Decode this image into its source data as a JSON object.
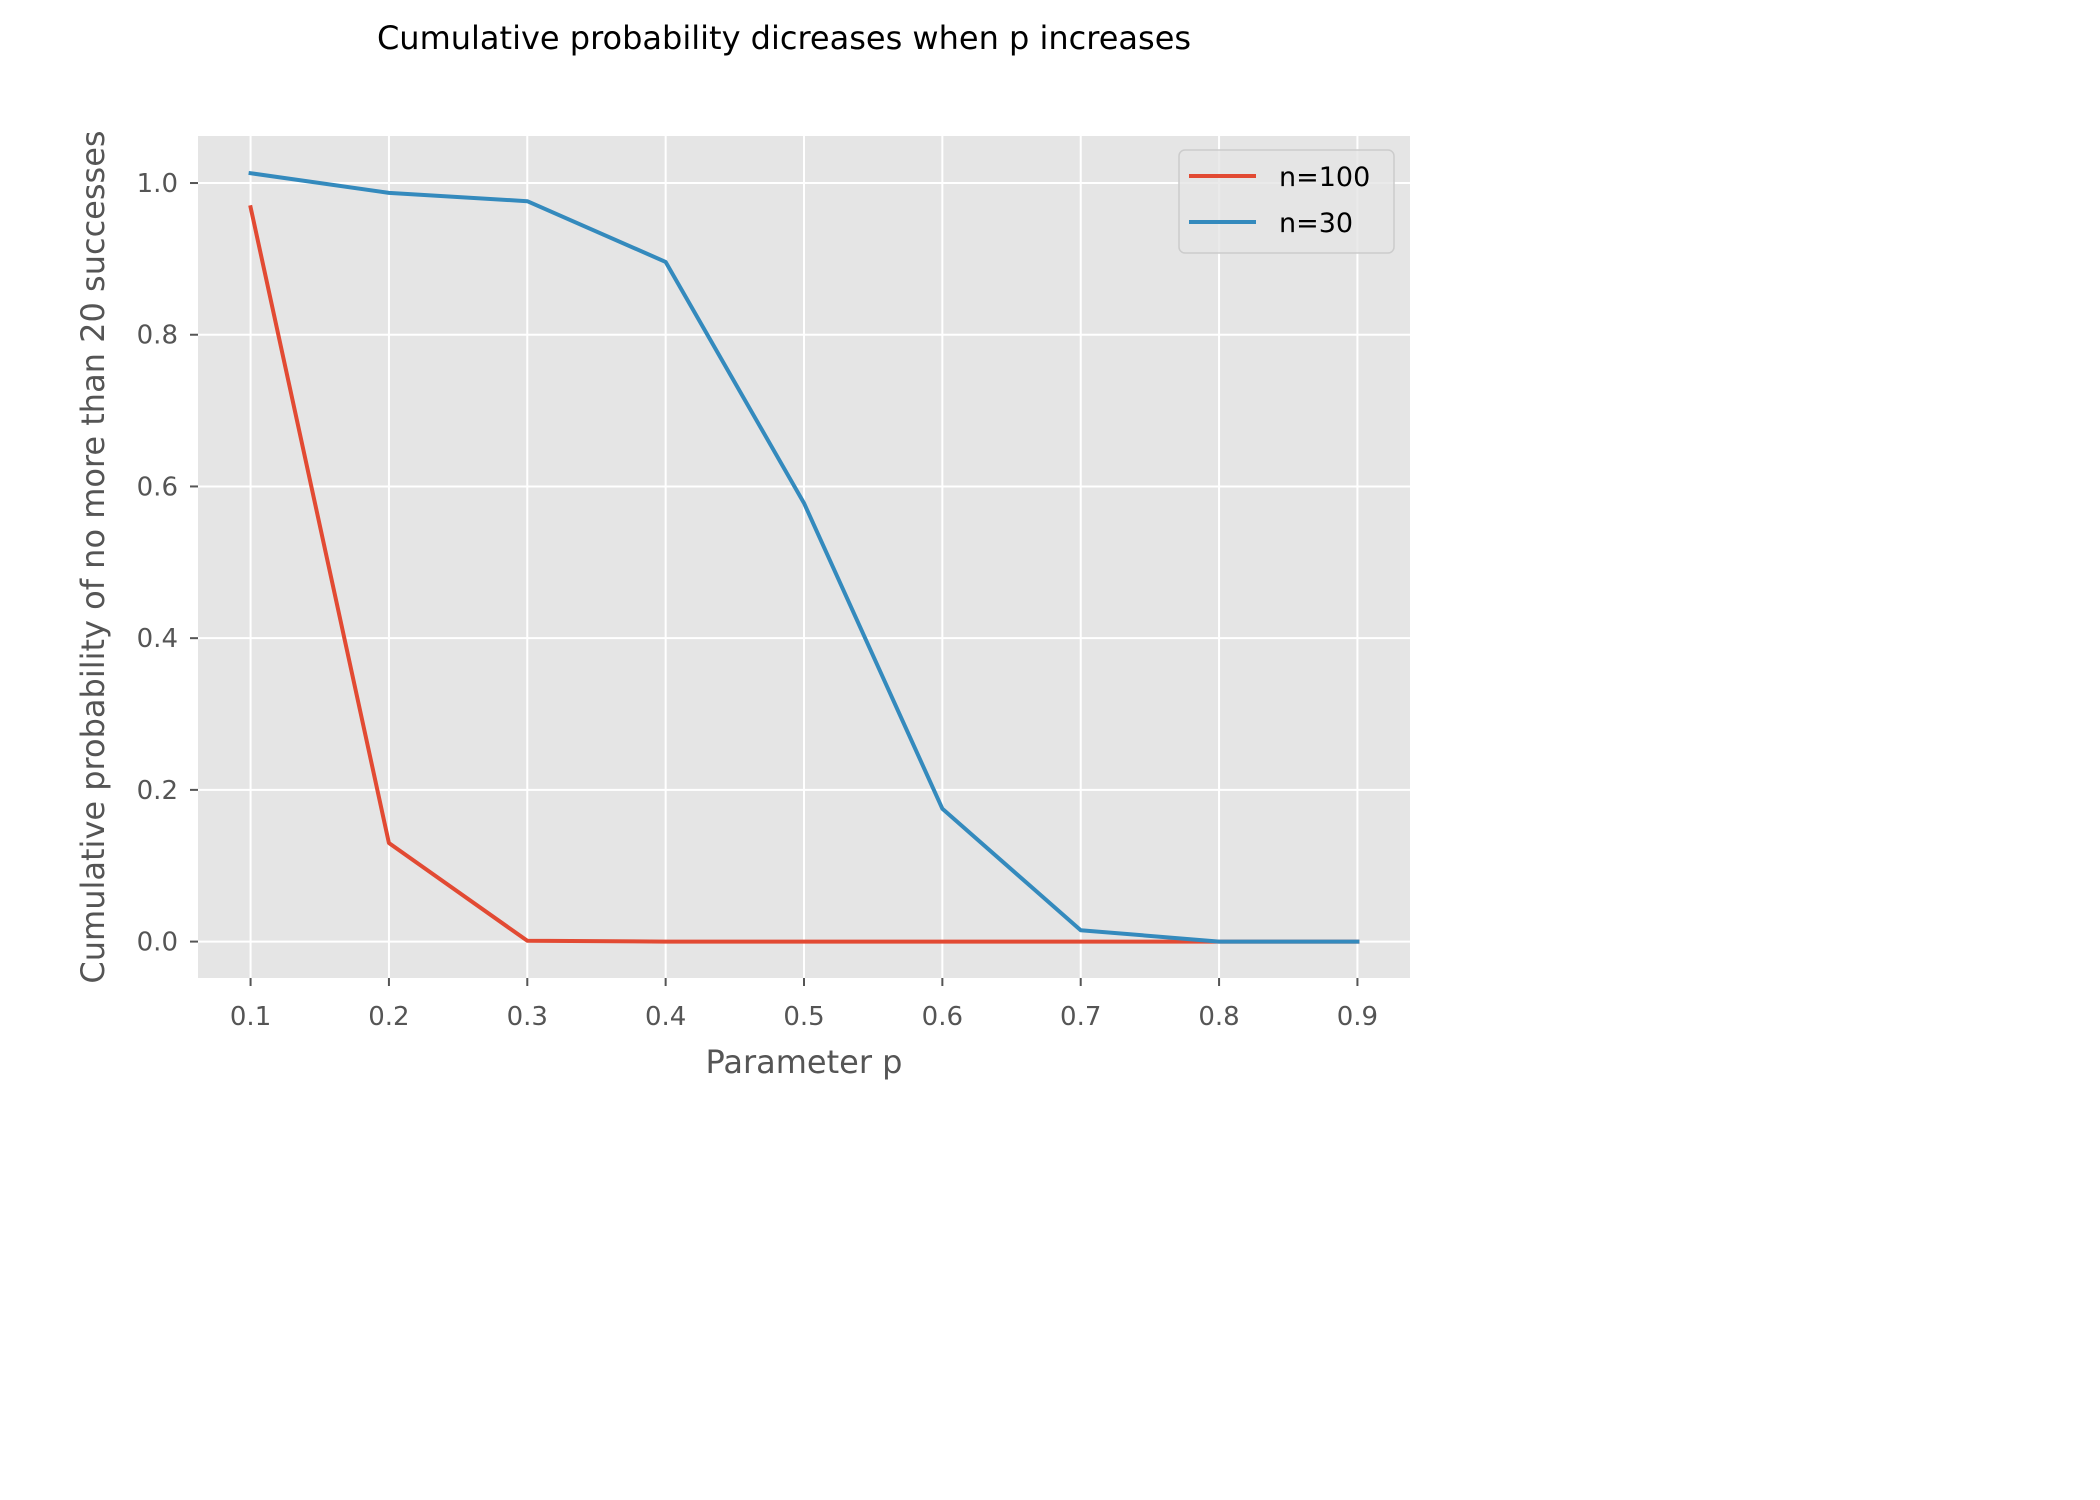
{
  "chart_data": {
    "type": "line",
    "title": "Cumulative probability dicreases when p increases",
    "xlabel": "Parameter p",
    "ylabel": "Cumulative probability of no more than 20 successes",
    "x": [
      0.1,
      0.2,
      0.3,
      0.4,
      0.5,
      0.6,
      0.7,
      0.8,
      0.9
    ],
    "xticks": [
      "0.1",
      "0.2",
      "0.3",
      "0.4",
      "0.5",
      "0.6",
      "0.7",
      "0.8",
      "0.9"
    ],
    "yticks": [
      "0.0",
      "0.2",
      "0.4",
      "0.6",
      "0.8",
      "1.0"
    ],
    "xlim": [
      0.062,
      0.938
    ],
    "ylim": [
      -0.048,
      1.062
    ],
    "grid": true,
    "legend_position": "upper right",
    "series": [
      {
        "name": "n=100",
        "color": "#E24A33",
        "values": [
          0.968,
          0.13,
          0.001,
          0.0,
          0.0,
          0.0,
          0.0,
          0.0,
          0.0
        ]
      },
      {
        "name": "n=30",
        "color": "#348ABD",
        "values": [
          1.013,
          0.987,
          0.976,
          0.896,
          0.578,
          0.175,
          0.015,
          0.0,
          0.0
        ]
      }
    ],
    "background_color": "#E5E5E5"
  }
}
